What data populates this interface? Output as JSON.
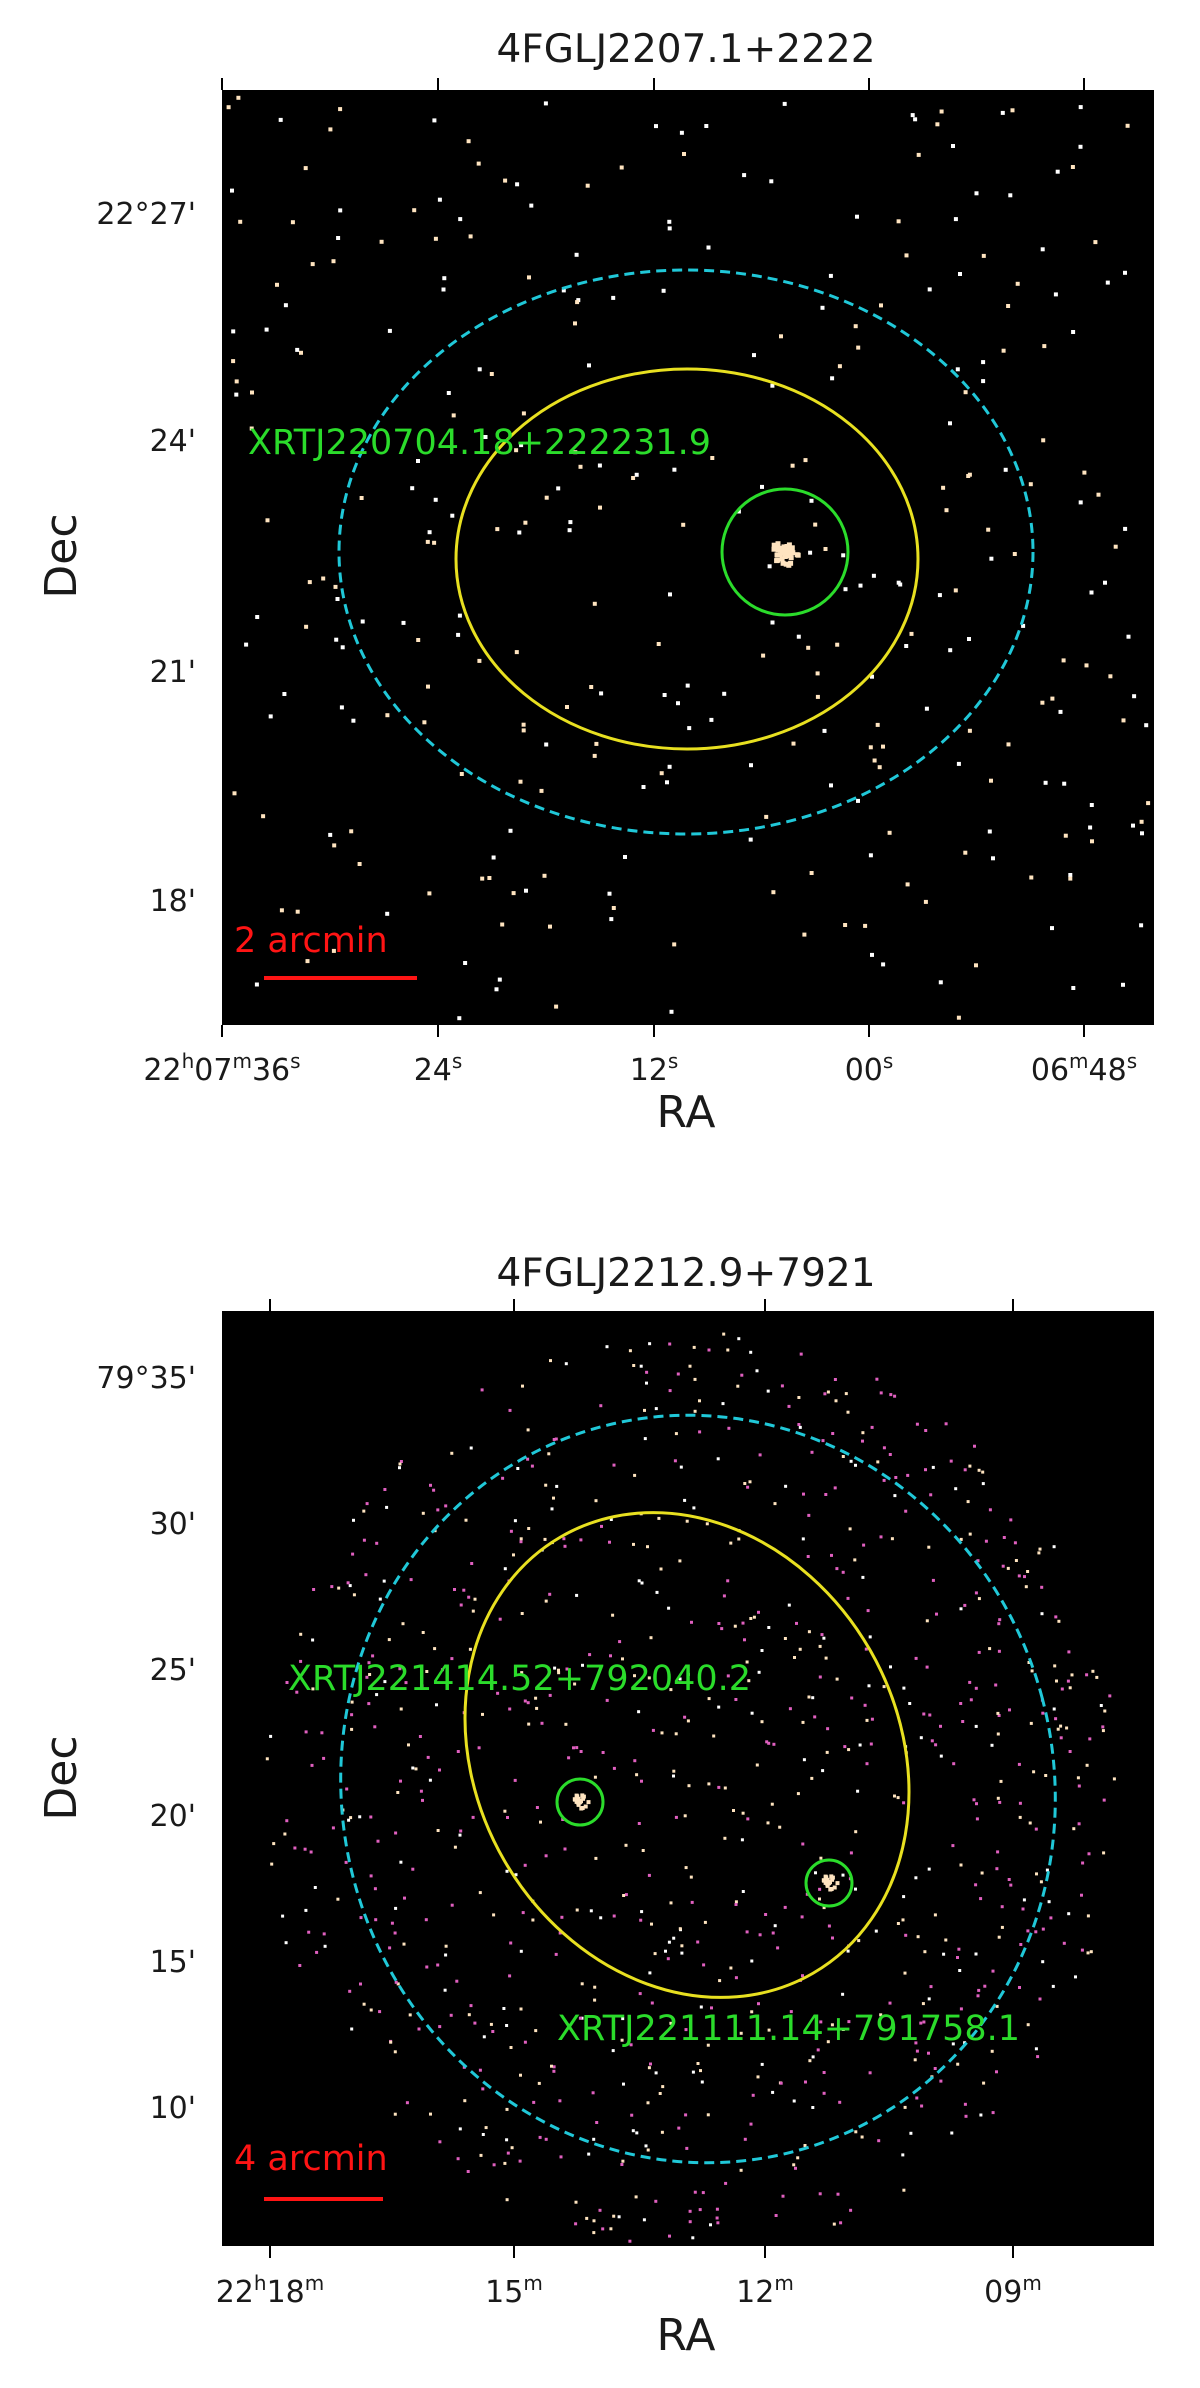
{
  "panels": [
    {
      "title": "4FGLJ2207.1+2222",
      "ylabel": "Dec",
      "xlabel": "RA",
      "dec_ticks": [
        "22°27'",
        "24'",
        "21'",
        "18'"
      ],
      "ra_ticks": [
        {
          "main": "22",
          "s1": "h",
          "mid": "07",
          "s2": "m",
          "tail": "36",
          "s3": "s"
        },
        {
          "main": "",
          "s1": "",
          "mid": "",
          "s2": "",
          "tail": "24",
          "s3": "s"
        },
        {
          "main": "",
          "s1": "",
          "mid": "",
          "s2": "",
          "tail": "12",
          "s3": "s"
        },
        {
          "main": "",
          "s1": "",
          "mid": "",
          "s2": "",
          "tail": "00",
          "s3": "s"
        },
        {
          "main": "",
          "s1": "",
          "mid": "06",
          "s2": "m",
          "tail": "48",
          "s3": "s"
        }
      ],
      "source_labels": [
        "XRTJ220704.18+222231.9"
      ],
      "scale_label": "2 arcmin"
    },
    {
      "title": "4FGLJ2212.9+7921",
      "ylabel": "Dec",
      "xlabel": "RA",
      "dec_ticks": [
        "79°35'",
        "30'",
        "25'",
        "20'",
        "15'",
        "10'"
      ],
      "ra_ticks": [
        {
          "main": "22",
          "s1": "h",
          "mid": "18",
          "s2": "m"
        },
        {
          "main": "",
          "s1": "",
          "mid": "15",
          "s2": "m"
        },
        {
          "main": "",
          "s1": "",
          "mid": "12",
          "s2": "m"
        },
        {
          "main": "",
          "s1": "",
          "mid": "09",
          "s2": "m"
        }
      ],
      "source_labels": [
        "XRTJ221414.52+792040.2",
        "XRTJ221111.14+791758.1"
      ],
      "scale_label": "4 arcmin"
    }
  ],
  "colors": {
    "background": "#000000",
    "outer_ellipse": "#20c8d8",
    "inner_ellipse": "#e8e020",
    "source_circle": "#2bdc2b",
    "scale_bar": "#ff1414",
    "photon_warm": "#ffe4c0",
    "photon_pink": "#e060c0"
  }
}
